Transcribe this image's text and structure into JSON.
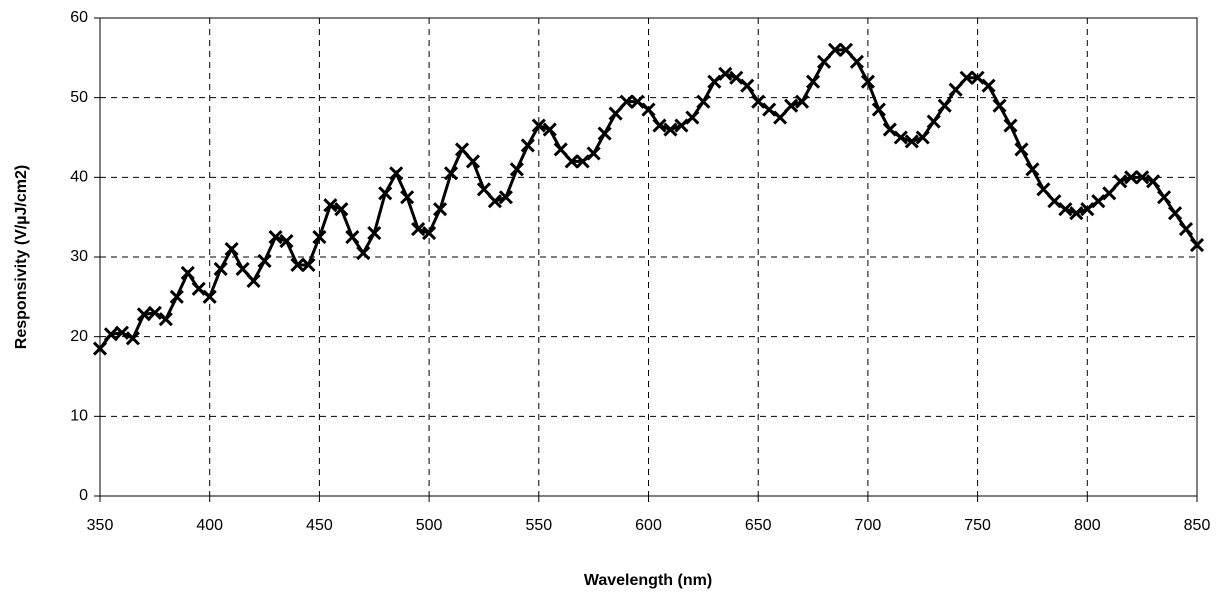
{
  "chart_data": {
    "type": "line",
    "x_label": "Wavelength (nm)",
    "y_label": "Responsivity (V/µJ/cm2)",
    "x": [
      350,
      355,
      360,
      365,
      370,
      375,
      380,
      385,
      390,
      395,
      400,
      405,
      410,
      415,
      420,
      425,
      430,
      435,
      440,
      445,
      450,
      455,
      460,
      465,
      470,
      475,
      480,
      485,
      490,
      495,
      500,
      505,
      510,
      515,
      520,
      525,
      530,
      535,
      540,
      545,
      550,
      555,
      560,
      565,
      570,
      575,
      580,
      585,
      590,
      595,
      600,
      605,
      610,
      615,
      620,
      625,
      630,
      635,
      640,
      645,
      650,
      655,
      660,
      665,
      670,
      675,
      680,
      685,
      690,
      695,
      700,
      705,
      710,
      715,
      720,
      725,
      730,
      735,
      740,
      745,
      750,
      755,
      760,
      765,
      770,
      775,
      780,
      785,
      790,
      795,
      800,
      805,
      810,
      815,
      820,
      825,
      830,
      835,
      840,
      845,
      850
    ],
    "series": [
      {
        "color": "#000000",
        "values": [
          18.5,
          20.3,
          20.5,
          19.8,
          22.8,
          23,
          22.2,
          25,
          28,
          26,
          25,
          28.5,
          31,
          28.5,
          27,
          29.5,
          32.5,
          32,
          29,
          29,
          32.5,
          36.5,
          36,
          32.5,
          30.5,
          33,
          38,
          40.5,
          37.5,
          33.5,
          33,
          36,
          40.5,
          43.5,
          42,
          38.5,
          37,
          37.5,
          41,
          44,
          46.5,
          46,
          43.5,
          42,
          42,
          43,
          45.5,
          48,
          49.5,
          49.5,
          48.5,
          46.5,
          46,
          46.5,
          47.5,
          49.5,
          52,
          53,
          52.5,
          51.5,
          49.5,
          48.5,
          47.5,
          49,
          49.5,
          52,
          54.5,
          56,
          56,
          54.5,
          52,
          48.5,
          46,
          45,
          44.5,
          45,
          47,
          49,
          51,
          52.5,
          52.5,
          51.5,
          49,
          46.5,
          43.5,
          41,
          38.5,
          37,
          36,
          35.5,
          36,
          37,
          38,
          39.5,
          40,
          40,
          39.5,
          37.5,
          35.5,
          33.5,
          31.5
        ]
      }
    ],
    "marker": "x",
    "xlim": [
      350,
      850
    ],
    "xticks": [
      350,
      400,
      450,
      500,
      550,
      600,
      650,
      700,
      750,
      800,
      850
    ],
    "ylim": [
      0,
      60
    ],
    "yticks": [
      0,
      10,
      20,
      30,
      40,
      50,
      60
    ],
    "grid": true
  }
}
